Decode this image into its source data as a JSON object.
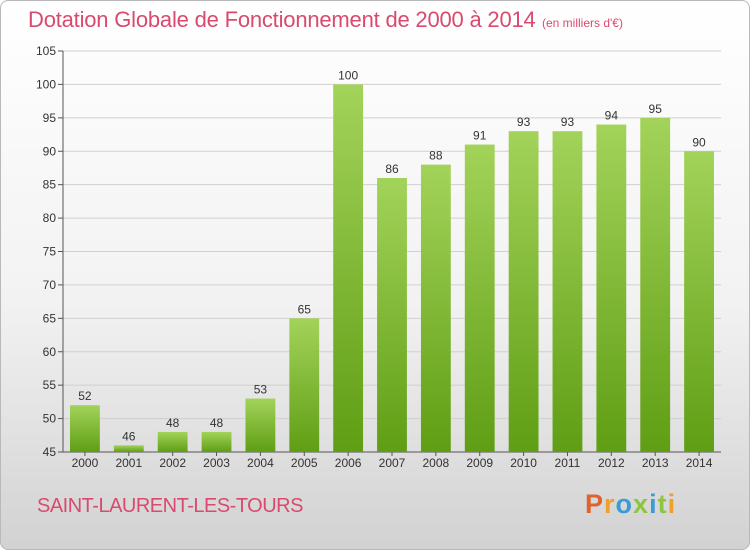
{
  "header": {
    "title": "Dotation Globale de Fonctionnement de 2000 à 2014",
    "unit": "(en milliers d'€)"
  },
  "footer": {
    "commune": "SAINT-LAURENT-LES-TOURS",
    "logo_letters": [
      "P",
      "r",
      "o",
      "x",
      "i",
      "t",
      "i"
    ],
    "logo_colors": [
      "#e0632b",
      "#f0a02a",
      "#3a9bd6",
      "#8cc63f",
      "#3a9bd6",
      "#8cc63f",
      "#f0a02a"
    ]
  },
  "colors": {
    "bar_top": "#a3d35a",
    "bar_bottom": "#5f9e14",
    "title": "#d94a6e",
    "text": "#333333"
  },
  "chart_data": {
    "type": "bar",
    "title": "Dotation Globale de Fonctionnement de 2000 à 2014",
    "ylabel": "(en milliers d'€)",
    "xlabel": "",
    "categories": [
      "2000",
      "2001",
      "2002",
      "2003",
      "2004",
      "2005",
      "2006",
      "2007",
      "2008",
      "2009",
      "2010",
      "2011",
      "2012",
      "2013",
      "2014"
    ],
    "values": [
      52,
      46,
      48,
      48,
      53,
      65,
      100,
      86,
      88,
      91,
      93,
      93,
      94,
      95,
      90
    ],
    "data_labels": [
      "52",
      "46",
      "48",
      "48",
      "53",
      "65",
      "100",
      "86",
      "88",
      "91",
      "93",
      "93",
      "94",
      "95",
      "90"
    ],
    "ylim": [
      45,
      105
    ],
    "yticks": [
      45,
      50,
      55,
      60,
      65,
      70,
      75,
      80,
      85,
      90,
      95,
      100,
      105
    ],
    "ytick_labels": [
      "45",
      "50",
      "55",
      "60",
      "65",
      "70",
      "75",
      "80",
      "85",
      "90",
      "95",
      "100",
      "105"
    ],
    "grid": true,
    "legend": "none"
  }
}
